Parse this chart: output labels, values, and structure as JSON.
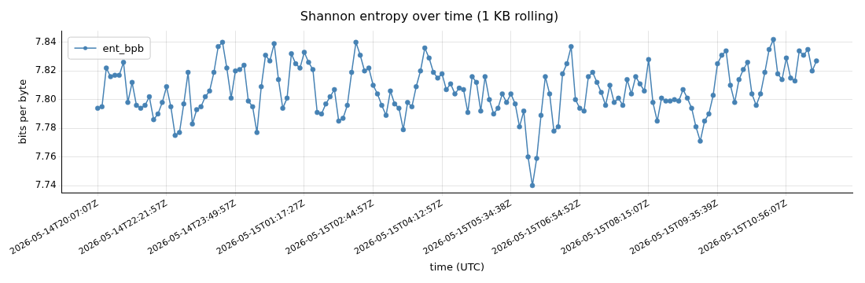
{
  "chart_data": {
    "type": "line",
    "title": "Shannon entropy over time (1 KB rolling)",
    "xlabel": "time (UTC)",
    "ylabel": "bits per byte",
    "categories": [
      "2026-05-14T20:07:07Z",
      null,
      null,
      null,
      null,
      null,
      null,
      null,
      null,
      null,
      null,
      null,
      null,
      null,
      null,
      null,
      "2026-05-14T22:21:57Z",
      null,
      null,
      null,
      null,
      null,
      null,
      null,
      null,
      null,
      null,
      null,
      null,
      null,
      null,
      null,
      "2026-05-14T23:49:57Z",
      null,
      null,
      null,
      null,
      null,
      null,
      null,
      null,
      null,
      null,
      null,
      null,
      null,
      null,
      null,
      "2026-05-15T01:17:27Z",
      null,
      null,
      null,
      null,
      null,
      null,
      null,
      null,
      null,
      null,
      null,
      null,
      null,
      null,
      null,
      "2026-05-15T02:44:57Z",
      null,
      null,
      null,
      null,
      null,
      null,
      null,
      null,
      null,
      null,
      null,
      null,
      null,
      null,
      null,
      "2026-05-15T04:12:57Z",
      null,
      null,
      null,
      null,
      null,
      null,
      null,
      null,
      null,
      null,
      null,
      null,
      null,
      null,
      null,
      "2026-05-15T05:34:38Z",
      null,
      null,
      null,
      null,
      null,
      null,
      null,
      null,
      null,
      null,
      null,
      null,
      null,
      null,
      null,
      "2026-05-15T06:54:52Z",
      null,
      null,
      null,
      null,
      null,
      null,
      null,
      null,
      null,
      null,
      null,
      null,
      null,
      null,
      null,
      "2026-05-15T08:15:07Z",
      null,
      null,
      null,
      null,
      null,
      null,
      null,
      null,
      null,
      null,
      null,
      null,
      null,
      null,
      null,
      "2026-05-15T09:35:39Z",
      null,
      null,
      null,
      null,
      null,
      null,
      null,
      null,
      null,
      null,
      null,
      null,
      null,
      null,
      null,
      "2026-05-15T10:56:07Z",
      null,
      null,
      null,
      null,
      null,
      null,
      null
    ],
    "series": [
      {
        "name": "ent_bpb",
        "color": "#4682b4",
        "values": [
          7.794,
          7.795,
          7.822,
          7.816,
          7.817,
          7.817,
          7.826,
          7.798,
          7.812,
          7.796,
          7.794,
          7.796,
          7.802,
          7.786,
          7.79,
          7.798,
          7.809,
          7.795,
          7.775,
          7.777,
          7.797,
          7.819,
          7.783,
          7.793,
          7.795,
          7.802,
          7.806,
          7.819,
          7.837,
          7.84,
          7.822,
          7.801,
          7.82,
          7.821,
          7.824,
          7.799,
          7.795,
          7.777,
          7.809,
          7.831,
          7.827,
          7.839,
          7.814,
          7.794,
          7.801,
          7.832,
          7.825,
          7.822,
          7.833,
          7.826,
          7.821,
          7.791,
          7.79,
          7.797,
          7.802,
          7.807,
          7.785,
          7.787,
          7.796,
          7.819,
          7.84,
          7.831,
          7.82,
          7.822,
          7.81,
          7.804,
          7.796,
          7.789,
          7.806,
          7.797,
          7.794,
          7.779,
          7.798,
          7.795,
          7.809,
          7.82,
          7.836,
          7.829,
          7.819,
          7.815,
          7.818,
          7.807,
          7.811,
          7.804,
          7.808,
          7.807,
          7.791,
          7.816,
          7.812,
          7.792,
          7.816,
          7.8,
          7.79,
          7.794,
          7.804,
          7.798,
          7.804,
          7.797,
          7.781,
          7.792,
          7.76,
          7.74,
          7.759,
          7.789,
          7.816,
          7.804,
          7.778,
          7.781,
          7.818,
          7.825,
          7.837,
          7.8,
          7.794,
          7.792,
          7.816,
          7.819,
          7.812,
          7.805,
          7.796,
          7.81,
          7.798,
          7.801,
          7.796,
          7.814,
          7.804,
          7.816,
          7.811,
          7.806,
          7.828,
          7.798,
          7.785,
          7.801,
          7.799,
          7.799,
          7.8,
          7.799,
          7.807,
          7.801,
          7.794,
          7.781,
          7.771,
          7.785,
          7.79,
          7.803,
          7.825,
          7.831,
          7.834,
          7.81,
          7.798,
          7.814,
          7.821,
          7.826,
          7.804,
          7.796,
          7.804,
          7.819,
          7.835,
          7.842,
          7.818,
          7.814,
          7.829,
          7.815,
          7.813,
          7.834,
          7.831,
          7.835,
          7.82,
          7.827
        ]
      }
    ],
    "ylim": [
      7.735,
      7.848
    ],
    "yticks": [
      7.74,
      7.76,
      7.78,
      {
        "value": 7.8,
        "label": "7.80"
      },
      7.82,
      7.84
    ],
    "grid": true,
    "legend": "top left",
    "marker": "circle",
    "line_style": "solid"
  }
}
